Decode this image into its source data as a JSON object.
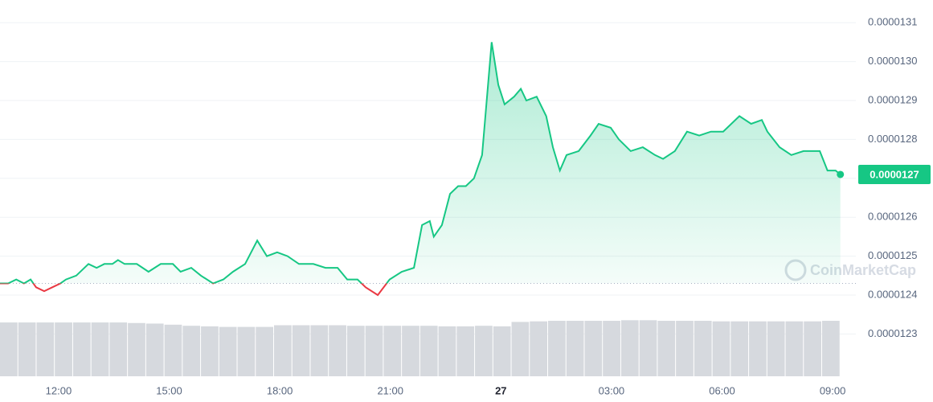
{
  "chart_data": {
    "type": "line",
    "x": [
      10.41,
      10.63,
      10.85,
      11.06,
      11.24,
      11.39,
      11.61,
      11.83,
      12.05,
      12.2,
      12.48,
      12.81,
      13.03,
      13.24,
      13.46,
      13.61,
      13.79,
      14.12,
      14.44,
      14.77,
      15.1,
      15.31,
      15.6,
      15.86,
      16.19,
      16.47,
      16.73,
      17.06,
      17.39,
      17.65,
      17.93,
      18.21,
      18.52,
      18.91,
      19.24,
      19.57,
      19.83,
      20.11,
      20.33,
      20.66,
      20.98,
      21.31,
      21.64,
      21.86,
      22.07,
      22.18,
      22.4,
      22.62,
      22.84,
      23.05,
      23.27,
      23.49,
      23.75,
      23.93,
      24.1,
      24.36,
      24.54,
      24.69,
      24.97,
      25.23,
      25.41,
      25.6,
      25.78,
      26.11,
      26.43,
      26.65,
      26.98,
      27.2,
      27.52,
      27.85,
      28.18,
      28.4,
      28.72,
      29.05,
      29.38,
      29.7,
      30.03,
      30.47,
      30.79,
      31.08,
      31.23,
      31.56,
      31.88,
      32.21,
      32.54,
      32.65,
      32.86,
      33.08,
      33.21
    ],
    "values": [
      1.243e-05,
      1.243e-05,
      1.244e-05,
      1.243e-05,
      1.244e-05,
      1.242e-05,
      1.241e-05,
      1.242e-05,
      1.243e-05,
      1.244e-05,
      1.245e-05,
      1.248e-05,
      1.247e-05,
      1.248e-05,
      1.248e-05,
      1.249e-05,
      1.248e-05,
      1.248e-05,
      1.246e-05,
      1.248e-05,
      1.248e-05,
      1.246e-05,
      1.247e-05,
      1.245e-05,
      1.243e-05,
      1.244e-05,
      1.246e-05,
      1.248e-05,
      1.254e-05,
      1.25e-05,
      1.251e-05,
      1.25e-05,
      1.248e-05,
      1.248e-05,
      1.247e-05,
      1.247e-05,
      1.244e-05,
      1.244e-05,
      1.242e-05,
      1.24e-05,
      1.244e-05,
      1.246e-05,
      1.247e-05,
      1.258e-05,
      1.259e-05,
      1.255e-05,
      1.258e-05,
      1.266e-05,
      1.268e-05,
      1.268e-05,
      1.27e-05,
      1.276e-05,
      1.305e-05,
      1.294e-05,
      1.289e-05,
      1.291e-05,
      1.293e-05,
      1.29e-05,
      1.291e-05,
      1.286e-05,
      1.278e-05,
      1.272e-05,
      1.276e-05,
      1.277e-05,
      1.281e-05,
      1.284e-05,
      1.283e-05,
      1.28e-05,
      1.277e-05,
      1.278e-05,
      1.276e-05,
      1.275e-05,
      1.277e-05,
      1.282e-05,
      1.281e-05,
      1.282e-05,
      1.282e-05,
      1.286e-05,
      1.284e-05,
      1.285e-05,
      1.282e-05,
      1.278e-05,
      1.276e-05,
      1.277e-05,
      1.277e-05,
      1.277e-05,
      1.272e-05,
      1.272e-05,
      1.271e-05
    ],
    "color": "#16c784",
    "down_color": "#ea3943",
    "reference_line": 1.243e-05,
    "xlim": [
      10.41,
      33.63
    ],
    "xticks": [
      {
        "value": 12,
        "label": "12:00"
      },
      {
        "value": 15,
        "label": "15:00"
      },
      {
        "value": 18,
        "label": "18:00"
      },
      {
        "value": 21,
        "label": "21:00"
      },
      {
        "value": 24,
        "label": "27",
        "bold": true
      },
      {
        "value": 27,
        "label": "03:00"
      },
      {
        "value": 30,
        "label": "06:00"
      },
      {
        "value": 33,
        "label": "09:00"
      }
    ],
    "ylim": [
      1.225e-05,
      1.315e-05
    ],
    "yticks": [
      {
        "value": 1.23e-05,
        "label": "0.0000123"
      },
      {
        "value": 1.24e-05,
        "label": "0.0000124"
      },
      {
        "value": 1.25e-05,
        "label": "0.0000125"
      },
      {
        "value": 1.26e-05,
        "label": "0.0000126"
      },
      {
        "value": 1.27e-05,
        "label": "0.0000127"
      },
      {
        "value": 1.28e-05,
        "label": "0.0000128"
      },
      {
        "value": 1.29e-05,
        "label": "0.0000129"
      },
      {
        "value": 1.3e-05,
        "label": "0.0000130"
      },
      {
        "value": 1.31e-05,
        "label": "0.0000131"
      }
    ],
    "grid": true,
    "last_price_label": "0.0000127",
    "watermark": "CoinMarketCap",
    "volume": {
      "color": "#d6d9de",
      "ylim": [
        0,
        100
      ],
      "values": [
        97,
        97,
        97,
        97,
        97,
        97,
        97,
        96,
        95,
        93,
        91,
        90,
        89,
        89,
        89,
        92,
        92,
        92,
        92,
        91,
        91,
        91,
        91,
        91,
        90,
        90,
        91,
        90,
        98,
        99,
        100,
        100,
        100,
        100,
        101,
        101,
        100,
        100,
        100,
        99,
        99,
        99,
        99,
        99,
        99,
        100
      ]
    }
  }
}
